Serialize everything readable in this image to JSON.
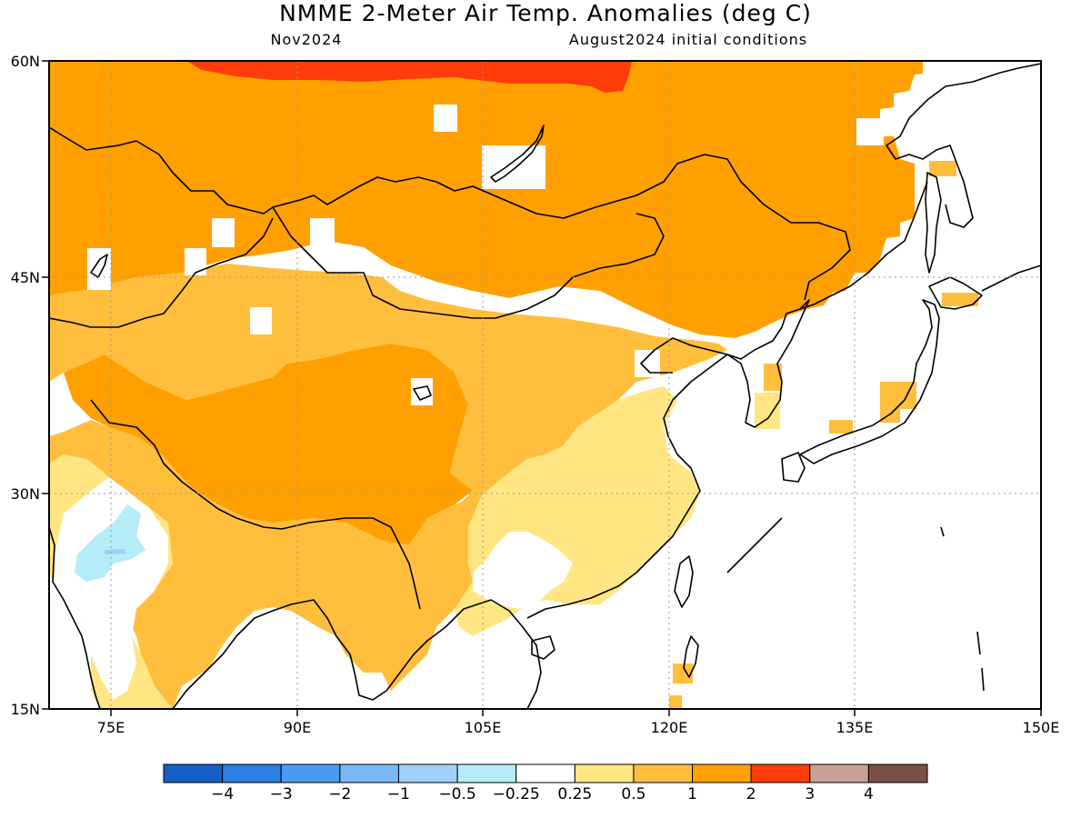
{
  "header": {
    "title": "NMME 2-Meter Air Temp. Anomalies (deg C)",
    "valid_month": "Nov2024",
    "init_conditions": "August2024 initial conditions"
  },
  "axes": {
    "lat_labels": [
      "60N",
      "45N",
      "30N",
      "15N"
    ],
    "lon_labels": [
      "75E",
      "90E",
      "105E",
      "120E",
      "135E",
      "150E"
    ],
    "lat_range": [
      15,
      60
    ],
    "lon_range": [
      70,
      150
    ],
    "grid": "dotted"
  },
  "colorbar": {
    "labels": [
      "-4",
      "-3",
      "-2",
      "-1",
      "-0.5",
      "-0.25",
      "0.25",
      "0.5",
      "1",
      "2",
      "3",
      "4"
    ],
    "colors": [
      "#1560c8",
      "#2a7fe0",
      "#4a9cf0",
      "#78b8f5",
      "#9fd0f8",
      "#b4ecf8",
      "#ffffff",
      "#ffe682",
      "#ffbf3c",
      "#ffa000",
      "#ff3c0a",
      "#c8a096",
      "#785046"
    ]
  },
  "map": {
    "region": "East Asia",
    "anomaly_classes": {
      "cool": "-0.5 to -0.25",
      "neutral": "-0.25 to 0.25",
      "slight_warm": "0.25 to 0.5",
      "warm": "0.5 to 1",
      "warmer": "1 to 2",
      "hot": "2 to 3"
    }
  }
}
